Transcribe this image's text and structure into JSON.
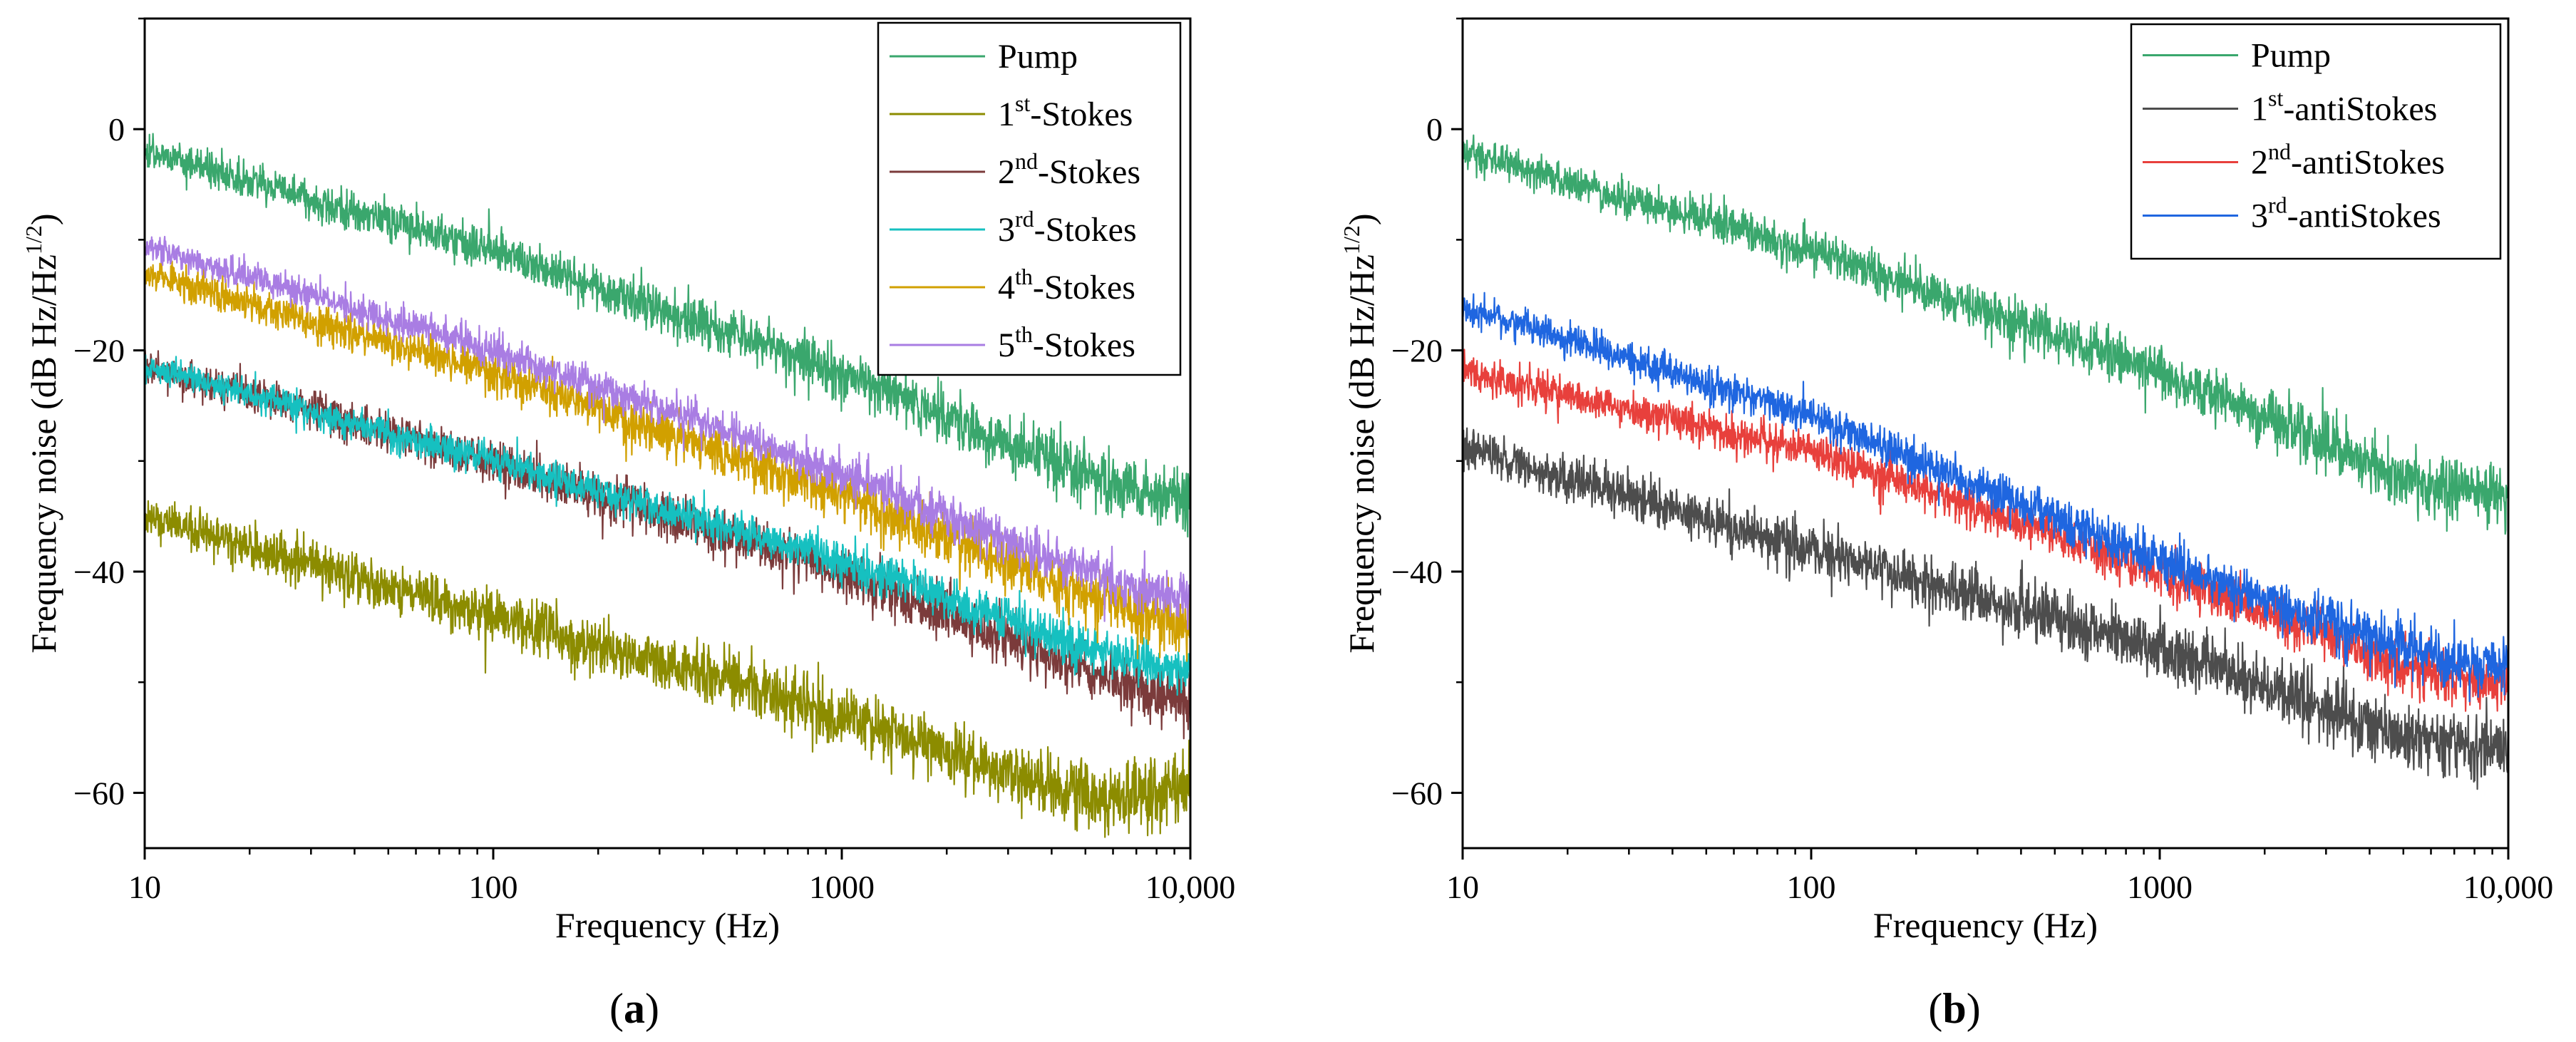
{
  "chart_data": [
    {
      "panel_label": "(a)",
      "panel_letter": "a",
      "type": "line",
      "xscale": "log",
      "xlabel": "Frequency (Hz)",
      "ylabel": "Frequency noise (dB Hz/Hz",
      "ylabel_sup": "1/2",
      "ylabel_close": ")",
      "xlim": [
        10,
        10000
      ],
      "ylim": [
        -65,
        10
      ],
      "xticks": [
        10,
        100,
        1000,
        10000
      ],
      "xtick_labels": [
        "10",
        "100",
        "1000",
        "10,000"
      ],
      "yticks": [
        0,
        -20,
        -40,
        -60
      ],
      "ytick_labels": [
        "0",
        "−20",
        "−40",
        "−60"
      ],
      "legend_position": "top-right",
      "series": [
        {
          "name": "Pump",
          "name_base": "Pump",
          "name_sup": "",
          "name_suffix": "",
          "color": "#3aa76d",
          "anchors": [
            [
              10,
              -2
            ],
            [
              100,
              -11
            ],
            [
              1000,
              -22
            ],
            [
              5000,
              -31.5
            ],
            [
              8000,
              -33
            ],
            [
              10000,
              -33
            ]
          ],
          "noise": 1.0,
          "seed": 11
        },
        {
          "name": "1st-Stokes",
          "name_base": "1",
          "name_sup": "st",
          "name_suffix": "-Stokes",
          "color": "#8c8c00",
          "anchors": [
            [
              10,
              -35
            ],
            [
              100,
              -44
            ],
            [
              1000,
              -53
            ],
            [
              5000,
              -60.5
            ],
            [
              8000,
              -60
            ],
            [
              10000,
              -59
            ]
          ],
          "noise": 1.2,
          "seed": 12
        },
        {
          "name": "2nd-Stokes",
          "name_base": "2",
          "name_sup": "nd",
          "name_suffix": "-Stokes",
          "color": "#7b3b3b",
          "anchors": [
            [
              10,
              -21.5
            ],
            [
              100,
              -30
            ],
            [
              1000,
              -40
            ],
            [
              5000,
              -49
            ],
            [
              8000,
              -51
            ],
            [
              10000,
              -52
            ]
          ],
          "noise": 1.0,
          "seed": 13
        },
        {
          "name": "3rd-Stokes",
          "name_base": "3",
          "name_sup": "rd",
          "name_suffix": "-Stokes",
          "color": "#16c0c0",
          "anchors": [
            [
              10,
              -21.5
            ],
            [
              100,
              -30
            ],
            [
              1000,
              -39
            ],
            [
              5000,
              -47
            ],
            [
              8000,
              -48.5
            ],
            [
              10000,
              -49
            ]
          ],
          "noise": 0.8,
          "seed": 14
        },
        {
          "name": "4th-Stokes",
          "name_base": "4",
          "name_sup": "th",
          "name_suffix": "-Stokes",
          "color": "#d1a000",
          "anchors": [
            [
              10,
              -13
            ],
            [
              100,
              -22
            ],
            [
              1000,
              -33
            ],
            [
              5000,
              -42
            ],
            [
              8000,
              -44
            ],
            [
              10000,
              -45
            ]
          ],
          "noise": 1.0,
          "seed": 15
        },
        {
          "name": "5th-Stokes",
          "name_base": "5",
          "name_sup": "th",
          "name_suffix": "-Stokes",
          "color": "#a97de3",
          "anchors": [
            [
              10,
              -10.5
            ],
            [
              100,
              -20
            ],
            [
              1000,
              -31
            ],
            [
              5000,
              -40
            ],
            [
              8000,
              -42
            ],
            [
              10000,
              -42
            ]
          ],
          "noise": 0.8,
          "seed": 16
        }
      ]
    },
    {
      "panel_label": "(b)",
      "panel_letter": "b",
      "type": "line",
      "xscale": "log",
      "xlabel": "Frequency (Hz)",
      "ylabel": "Frequency noise (dB Hz/Hz",
      "ylabel_sup": "1/2",
      "ylabel_close": ")",
      "xlim": [
        10,
        10000
      ],
      "ylim": [
        -65,
        10
      ],
      "xticks": [
        10,
        100,
        1000,
        10000
      ],
      "xtick_labels": [
        "10",
        "100",
        "1000",
        "10,000"
      ],
      "yticks": [
        0,
        -20,
        -40,
        -60
      ],
      "ytick_labels": [
        "0",
        "−20",
        "−40",
        "−60"
      ],
      "legend_position": "top-right",
      "series": [
        {
          "name": "Pump",
          "name_base": "Pump",
          "name_sup": "",
          "name_suffix": "",
          "color": "#3aa76d",
          "anchors": [
            [
              10,
              -2
            ],
            [
              100,
              -11
            ],
            [
              1000,
              -22
            ],
            [
              5000,
              -31.5
            ],
            [
              8000,
              -33
            ],
            [
              10000,
              -33
            ]
          ],
          "noise": 1.0,
          "seed": 21
        },
        {
          "name": "1st-antiStokes",
          "name_base": "1",
          "name_sup": "st",
          "name_suffix": "-antiStokes",
          "color": "#4d4d4d",
          "anchors": [
            [
              10,
              -29
            ],
            [
              100,
              -38
            ],
            [
              1000,
              -47
            ],
            [
              5000,
              -55
            ],
            [
              8000,
              -56
            ],
            [
              10000,
              -55.5
            ]
          ],
          "noise": 1.2,
          "seed": 22
        },
        {
          "name": "2nd-antiStokes",
          "name_base": "2",
          "name_sup": "nd",
          "name_suffix": "-antiStokes",
          "color": "#e8403c",
          "anchors": [
            [
              10,
              -22
            ],
            [
              100,
              -29
            ],
            [
              1000,
              -40
            ],
            [
              5000,
              -48.5
            ],
            [
              8000,
              -50
            ],
            [
              10000,
              -50
            ]
          ],
          "noise": 0.9,
          "seed": 23
        },
        {
          "name": "3rd-antiStokes",
          "name_base": "3",
          "name_sup": "rd",
          "name_suffix": "-antiStokes",
          "color": "#1f66e0",
          "anchors": [
            [
              10,
              -16
            ],
            [
              100,
              -26
            ],
            [
              1000,
              -39
            ],
            [
              5000,
              -47
            ],
            [
              8000,
              -48.5
            ],
            [
              10000,
              -48.5
            ]
          ],
          "noise": 0.9,
          "seed": 24
        }
      ]
    }
  ]
}
